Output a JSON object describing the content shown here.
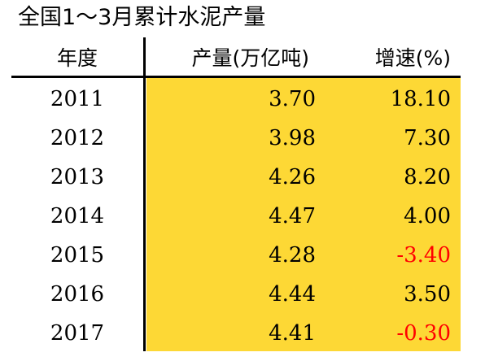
{
  "title": "全国1～3月累计水泥产量",
  "colors": {
    "highlight": "#FDD835",
    "negative": "#FF0000",
    "text": "#000000"
  },
  "chart_data": {
    "type": "table",
    "title": "全国1～3月累计水泥产量",
    "columns": [
      "年度",
      "产量(万亿吨)",
      "增速(%)"
    ],
    "rows": [
      {
        "year": "2011",
        "production": "3.70",
        "growth": "18.10"
      },
      {
        "year": "2012",
        "production": "3.98",
        "growth": "7.30"
      },
      {
        "year": "2013",
        "production": "4.26",
        "growth": "8.20"
      },
      {
        "year": "2014",
        "production": "4.47",
        "growth": "4.00"
      },
      {
        "year": "2015",
        "production": "4.28",
        "growth": "-3.40"
      },
      {
        "year": "2016",
        "production": "4.44",
        "growth": "3.50"
      },
      {
        "year": "2017",
        "production": "4.41",
        "growth": "-0.30"
      }
    ]
  }
}
